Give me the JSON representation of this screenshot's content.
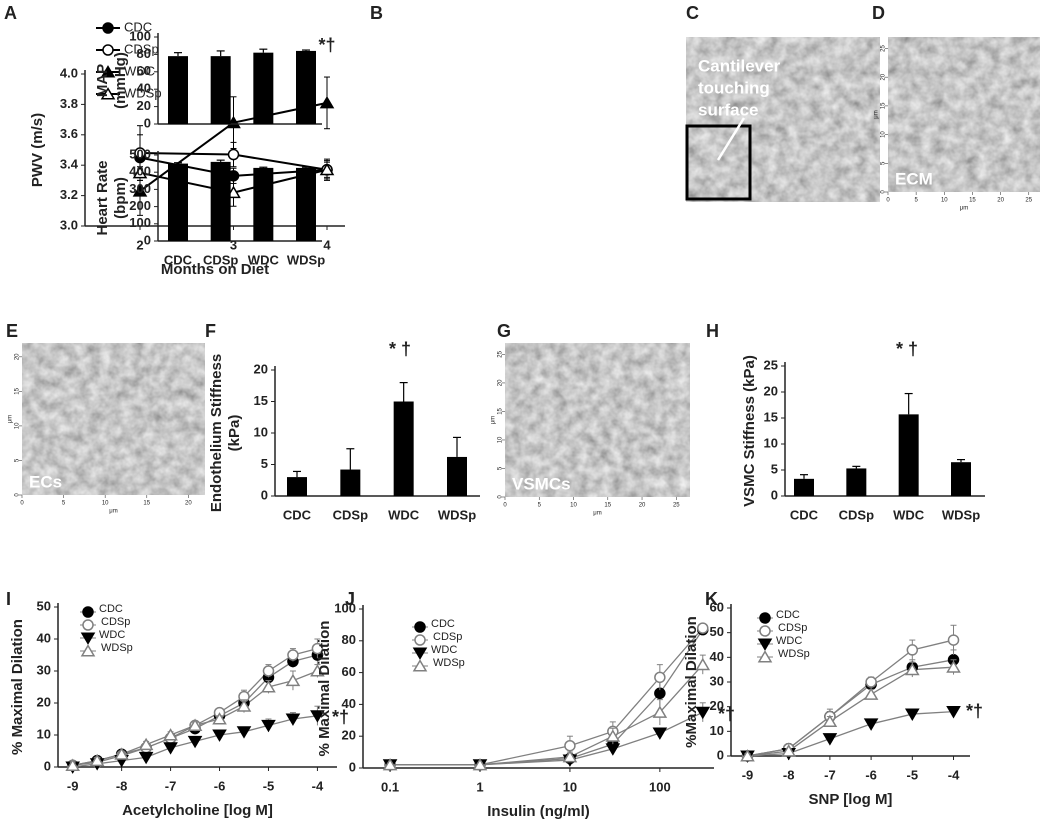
{
  "chart_data": [
    {
      "type": "line",
      "panel": "A",
      "ylabel": "PWV (m/s)",
      "xlabel": "Months on Diet",
      "categories": [
        "2",
        "3",
        "4"
      ],
      "ylim": [
        3.0,
        4.0
      ],
      "yticks": [
        {
          "value": 3,
          "label": "3.0"
        },
        {
          "value": 3.2,
          "label": "3.2"
        },
        {
          "value": 3.4,
          "label": "3.4"
        },
        {
          "value": 3.6,
          "label": "3.6"
        },
        {
          "value": 3.8,
          "label": "3.8"
        },
        {
          "value": 4,
          "label": "4.0"
        }
      ],
      "annotation": "*†",
      "series": [
        {
          "name": "CDC",
          "color": "#000000",
          "marker": "circle",
          "values": [
            3.45,
            3.33,
            3.37
          ],
          "errors": [
            0.15,
            0.05,
            0.05
          ]
        },
        {
          "name": "CDSp",
          "color": "#000000",
          "marker": "open-circle",
          "values": [
            3.48,
            3.47,
            3.37
          ],
          "errors": [
            0.18,
            0.08,
            0.06
          ]
        },
        {
          "name": "WDC",
          "color": "#000000",
          "marker": "triangle",
          "values": [
            3.23,
            3.68,
            3.81
          ],
          "errors": [
            0.16,
            0.17,
            0.17
          ]
        },
        {
          "name": "WDSp",
          "color": "#000000",
          "marker": "open-triangle",
          "values": [
            3.35,
            3.22,
            3.37
          ],
          "errors": [
            0.1,
            0.09,
            0.07
          ]
        }
      ]
    },
    {
      "type": "bar",
      "panel": "B",
      "ylabel": [
        "MAP",
        "(mmHg)"
      ],
      "ylim": [
        0,
        100
      ],
      "yticks": [
        0,
        20,
        40,
        60,
        80,
        100
      ],
      "color": "#000000",
      "values": [
        78,
        78,
        82,
        84
      ],
      "errors": [
        4,
        6,
        4,
        1
      ]
    },
    {
      "type": "bar",
      "ylabel": [
        "Heart Rate",
        "(bpm)"
      ],
      "categories": [
        "CDC",
        "CDSp",
        "WDC",
        "WDSp"
      ],
      "ylim": [
        0,
        500
      ],
      "yticks": [
        0,
        100,
        200,
        300,
        400,
        500
      ],
      "color": "#000000",
      "values": [
        450,
        460,
        425,
        425
      ],
      "errors": [
        5,
        10,
        4,
        4
      ]
    },
    {
      "type": "image",
      "panel": "C",
      "label": [
        "Cantilever",
        "touching",
        "surface"
      ]
    },
    {
      "type": "image",
      "panel": "D",
      "label": "ECM",
      "xlabel": "μm",
      "ylabel": "μm",
      "xlim": [
        0,
        27
      ],
      "ylim": [
        0,
        27
      ],
      "xticks": [
        0,
        5,
        10,
        15,
        20,
        25
      ],
      "yticks": [
        0,
        5,
        10,
        15,
        20,
        25
      ]
    },
    {
      "type": "image",
      "panel": "E",
      "label": "ECs",
      "xlabel": "μm",
      "ylabel": "μm",
      "xlim": [
        0,
        22
      ],
      "ylim": [
        0,
        22
      ],
      "xticks": [
        0,
        5,
        10,
        15,
        20
      ],
      "yticks": [
        0,
        5,
        10,
        15,
        20
      ]
    },
    {
      "type": "bar",
      "panel": "F",
      "ylabel": [
        "Endothelium Stiffness",
        "(kPa)"
      ],
      "categories": [
        "CDC",
        "CDSp",
        "WDC",
        "WDSp"
      ],
      "ylim": [
        0,
        20
      ],
      "yticks": [
        0,
        5,
        10,
        15,
        20
      ],
      "color": "#000000",
      "values": [
        3,
        4.2,
        15,
        6.2
      ],
      "errors": [
        0.9,
        3.3,
        3,
        3.1
      ],
      "annotation": "* †"
    },
    {
      "type": "image",
      "panel": "G",
      "label": "VSMCs",
      "xlabel": "μm",
      "ylabel": "μm",
      "xlim": [
        0,
        27
      ],
      "ylim": [
        0,
        27
      ],
      "xticks": [
        0,
        5,
        10,
        15,
        20,
        25
      ],
      "yticks": [
        0,
        5,
        10,
        15,
        20,
        25
      ]
    },
    {
      "type": "bar",
      "panel": "H",
      "ylabel": "VSMC Stiffness (kPa)",
      "categories": [
        "CDC",
        "CDSp",
        "WDC",
        "WDSp"
      ],
      "ylim": [
        0,
        25
      ],
      "yticks": [
        0,
        5,
        10,
        15,
        20,
        25
      ],
      "color": "#000000",
      "values": [
        3.3,
        5.3,
        15.7,
        6.5
      ],
      "errors": [
        0.8,
        0.4,
        4,
        0.5
      ],
      "annotation": "* †"
    },
    {
      "type": "line",
      "panel": "I",
      "ylabel": "% Maximal Dilation",
      "xlabel": "Acetylcholine [log M]",
      "x": [
        -9,
        -8.5,
        -8,
        -7.5,
        -7,
        -6.5,
        -6,
        -5.5,
        -5,
        -4.5,
        -4
      ],
      "xlim": [
        -9.3,
        -3.6
      ],
      "xticks": [
        -9,
        -8,
        -7,
        -6,
        -5,
        -4
      ],
      "ylim": [
        0,
        50
      ],
      "yticks": [
        0,
        10,
        20,
        30,
        40,
        50
      ],
      "annotation": "*†",
      "series": [
        {
          "name": "CDC",
          "color": "#808080",
          "marker": "circle",
          "values": [
            0.5,
            2,
            4,
            6,
            9,
            12,
            16,
            20,
            28,
            33,
            35
          ],
          "errors": [
            1,
            1,
            1,
            1,
            1,
            1,
            1,
            2,
            2,
            2,
            3
          ]
        },
        {
          "name": "CDSp",
          "color": "#808080",
          "marker": "open-circle",
          "values": [
            0.5,
            1.5,
            3.5,
            6,
            9,
            13,
            17,
            22,
            30,
            35,
            37
          ],
          "errors": [
            1,
            1,
            1,
            1,
            1,
            1,
            1,
            2,
            2,
            2,
            3
          ]
        },
        {
          "name": "WDC",
          "color": "#808080",
          "marker": "triangle-down",
          "values": [
            0,
            1,
            2,
            3,
            6,
            8,
            10,
            11,
            13,
            15,
            16
          ],
          "errors": [
            1,
            1,
            1,
            1,
            1,
            1,
            1,
            1,
            2,
            2,
            3
          ]
        },
        {
          "name": "WDSp",
          "color": "#808080",
          "marker": "open-triangle",
          "values": [
            0.5,
            2,
            4,
            7,
            10,
            13,
            15,
            19,
            25,
            27,
            30
          ],
          "errors": [
            1,
            1,
            1,
            1,
            1,
            1,
            1,
            2,
            2,
            3,
            2
          ]
        }
      ]
    },
    {
      "type": "line",
      "panel": "J",
      "ylabel": "% Maximal Dilation",
      "xlabel": "Insulin (ng/ml)",
      "xscale": "log",
      "x": [
        0.1,
        1,
        10,
        30,
        100,
        300
      ],
      "xlim": [
        0.05,
        400
      ],
      "xticks": [
        0.1,
        1,
        10,
        100
      ],
      "ylim": [
        0,
        100
      ],
      "yticks": [
        0,
        20,
        40,
        60,
        80,
        100
      ],
      "annotation": "*†",
      "series": [
        {
          "name": "CDC",
          "color": "#808080",
          "marker": "circle",
          "values": [
            2,
            2,
            6,
            15,
            47,
            87
          ],
          "errors": [
            1,
            1,
            2,
            4,
            8,
            3
          ]
        },
        {
          "name": "CDSp",
          "color": "#808080",
          "marker": "open-circle",
          "values": [
            2,
            2,
            14,
            23,
            57,
            88
          ],
          "errors": [
            1,
            1,
            6,
            6,
            8,
            2
          ]
        },
        {
          "name": "WDC",
          "color": "#808080",
          "marker": "triangle-down",
          "values": [
            2,
            2,
            5,
            12,
            22,
            35
          ],
          "errors": [
            1,
            1,
            2,
            3,
            3,
            6
          ]
        },
        {
          "name": "WDSp",
          "color": "#808080",
          "marker": "open-triangle",
          "values": [
            2,
            2,
            7,
            20,
            35,
            65
          ],
          "errors": [
            1,
            1,
            3,
            5,
            8,
            6
          ]
        }
      ]
    },
    {
      "type": "line",
      "panel": "K",
      "ylabel": "%Maximal Dilation",
      "xlabel": "SNP [log M]",
      "x": [
        -9,
        -8,
        -7,
        -6,
        -5,
        -4
      ],
      "xlim": [
        -9.4,
        -3.6
      ],
      "xticks": [
        -9,
        -8,
        -7,
        -6,
        -5,
        -4
      ],
      "ylim": [
        0,
        60
      ],
      "yticks": [
        0,
        10,
        20,
        30,
        40,
        50,
        60
      ],
      "annotation": "*†",
      "series": [
        {
          "name": "CDC",
          "color": "#808080",
          "marker": "circle",
          "values": [
            0,
            3,
            16,
            29,
            36,
            39
          ],
          "errors": [
            1,
            1,
            2,
            2,
            3,
            4
          ]
        },
        {
          "name": "CDSp",
          "color": "#808080",
          "marker": "open-circle",
          "values": [
            0,
            3,
            16,
            30,
            43,
            47
          ],
          "errors": [
            1,
            1,
            3,
            2,
            4,
            6
          ]
        },
        {
          "name": "WDC",
          "color": "#808080",
          "marker": "triangle-down",
          "values": [
            0,
            1,
            7,
            13,
            17,
            18
          ],
          "errors": [
            1,
            1,
            1,
            1,
            1,
            1
          ]
        },
        {
          "name": "WDSp",
          "color": "#808080",
          "marker": "open-triangle",
          "values": [
            0,
            2,
            14,
            25,
            35,
            36
          ],
          "errors": [
            1,
            1,
            2,
            2,
            3,
            3
          ]
        }
      ]
    }
  ]
}
